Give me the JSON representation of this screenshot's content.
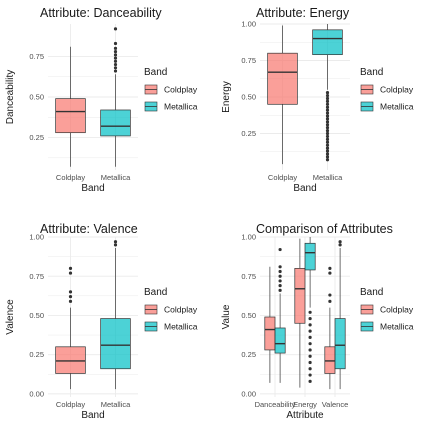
{
  "colors": {
    "Coldplay": "#F8766D",
    "Metallica": "#00BFC4",
    "grid": "#ebebeb",
    "box_line": "#333333"
  },
  "chart_data": [
    {
      "type": "box",
      "title": "Attribute: Danceability",
      "xlabel": "Band",
      "ylabel": "Danceability",
      "categories": [
        "Coldplay",
        "Metallica"
      ],
      "ylim": [
        0.05,
        0.95
      ],
      "yticks": [
        0.25,
        0.5,
        0.75
      ],
      "ytick_labels": [
        "0.25",
        "0.50",
        "0.75"
      ],
      "grid": true,
      "legend": {
        "title": "Band",
        "entries": [
          "Coldplay",
          "Metallica"
        ],
        "placement": "right"
      },
      "boxes": [
        {
          "category": "Coldplay",
          "fill": "Coldplay",
          "min": 0.07,
          "q1": 0.28,
          "median": 0.41,
          "q3": 0.49,
          "max": 0.81,
          "outliers": []
        },
        {
          "category": "Metallica",
          "fill": "Metallica",
          "min": 0.07,
          "q1": 0.26,
          "median": 0.32,
          "q3": 0.42,
          "max": 0.64,
          "outliers": [
            0.66,
            0.68,
            0.7,
            0.72,
            0.74,
            0.76,
            0.78,
            0.8,
            0.83,
            0.92
          ]
        }
      ]
    },
    {
      "type": "box",
      "title": "Attribute: Energy",
      "xlabel": "Band",
      "ylabel": "Energy",
      "categories": [
        "Coldplay",
        "Metallica"
      ],
      "ylim": [
        0.0,
        1.0
      ],
      "yticks": [
        0.25,
        0.5,
        0.75,
        1.0
      ],
      "ytick_labels": [
        "0.25",
        "0.50",
        "0.75",
        "1.00"
      ],
      "grid": true,
      "legend": {
        "title": "Band",
        "entries": [
          "Coldplay",
          "Metallica"
        ],
        "placement": "right"
      },
      "boxes": [
        {
          "category": "Coldplay",
          "fill": "Coldplay",
          "min": 0.04,
          "q1": 0.45,
          "median": 0.67,
          "q3": 0.8,
          "max": 0.99,
          "outliers": []
        },
        {
          "category": "Metallica",
          "fill": "Metallica",
          "min": 0.55,
          "q1": 0.79,
          "median": 0.9,
          "q3": 0.96,
          "max": 1.0,
          "outliers": [
            0.53,
            0.51,
            0.49,
            0.47,
            0.45,
            0.43,
            0.41,
            0.39,
            0.37,
            0.35,
            0.33,
            0.31,
            0.29,
            0.27,
            0.25,
            0.23,
            0.21,
            0.19,
            0.17,
            0.15,
            0.13,
            0.11,
            0.09,
            0.07
          ]
        }
      ]
    },
    {
      "type": "box",
      "title": "Attribute: Valence",
      "xlabel": "Band",
      "ylabel": "Valence",
      "categories": [
        "Coldplay",
        "Metallica"
      ],
      "ylim": [
        -0.02,
        1.0
      ],
      "yticks": [
        0.0,
        0.25,
        0.5,
        0.75,
        1.0
      ],
      "ytick_labels": [
        "0.00",
        "0.25",
        "0.50",
        "0.75",
        "1.00"
      ],
      "grid": true,
      "legend": {
        "title": "Band",
        "entries": [
          "Coldplay",
          "Metallica"
        ],
        "placement": "right"
      },
      "boxes": [
        {
          "category": "Coldplay",
          "fill": "Coldplay",
          "min": 0.03,
          "q1": 0.13,
          "median": 0.21,
          "q3": 0.3,
          "max": 0.55,
          "outliers": [
            0.59,
            0.62,
            0.65,
            0.77,
            0.8
          ]
        },
        {
          "category": "Metallica",
          "fill": "Metallica",
          "min": 0.03,
          "q1": 0.16,
          "median": 0.31,
          "q3": 0.48,
          "max": 0.93,
          "outliers": [
            0.95,
            0.97
          ]
        }
      ]
    },
    {
      "type": "box",
      "title": "Comparison of Attributes",
      "xlabel": "Attribute",
      "ylabel": "Value",
      "categories": [
        "Danceability",
        "Energy",
        "Valence"
      ],
      "ylim": [
        -0.02,
        1.0
      ],
      "yticks": [
        0.0,
        0.25,
        0.5,
        0.75,
        1.0
      ],
      "ytick_labels": [
        "0.00",
        "0.25",
        "0.50",
        "0.75",
        "1.00"
      ],
      "grid": true,
      "legend": {
        "title": "Band",
        "entries": [
          "Coldplay",
          "Metallica"
        ],
        "placement": "right"
      },
      "boxes": [
        {
          "category": "Danceability",
          "fill": "Coldplay",
          "min": 0.07,
          "q1": 0.28,
          "median": 0.41,
          "q3": 0.49,
          "max": 0.81,
          "outliers": []
        },
        {
          "category": "Danceability",
          "fill": "Metallica",
          "min": 0.07,
          "q1": 0.26,
          "median": 0.32,
          "q3": 0.42,
          "max": 0.64,
          "outliers": [
            0.66,
            0.69,
            0.72,
            0.75,
            0.78,
            0.81,
            0.92
          ]
        },
        {
          "category": "Energy",
          "fill": "Coldplay",
          "min": 0.04,
          "q1": 0.45,
          "median": 0.67,
          "q3": 0.8,
          "max": 0.99,
          "outliers": []
        },
        {
          "category": "Energy",
          "fill": "Metallica",
          "min": 0.55,
          "q1": 0.79,
          "median": 0.9,
          "q3": 0.96,
          "max": 1.0,
          "outliers": [
            0.52,
            0.48,
            0.44,
            0.4,
            0.36,
            0.32,
            0.28,
            0.24,
            0.2,
            0.16,
            0.12,
            0.08
          ]
        },
        {
          "category": "Valence",
          "fill": "Coldplay",
          "min": 0.03,
          "q1": 0.13,
          "median": 0.21,
          "q3": 0.3,
          "max": 0.55,
          "outliers": [
            0.59,
            0.63,
            0.77,
            0.8
          ]
        },
        {
          "category": "Valence",
          "fill": "Metallica",
          "min": 0.03,
          "q1": 0.16,
          "median": 0.31,
          "q3": 0.48,
          "max": 0.93,
          "outliers": [
            0.95,
            0.97
          ]
        }
      ]
    }
  ]
}
